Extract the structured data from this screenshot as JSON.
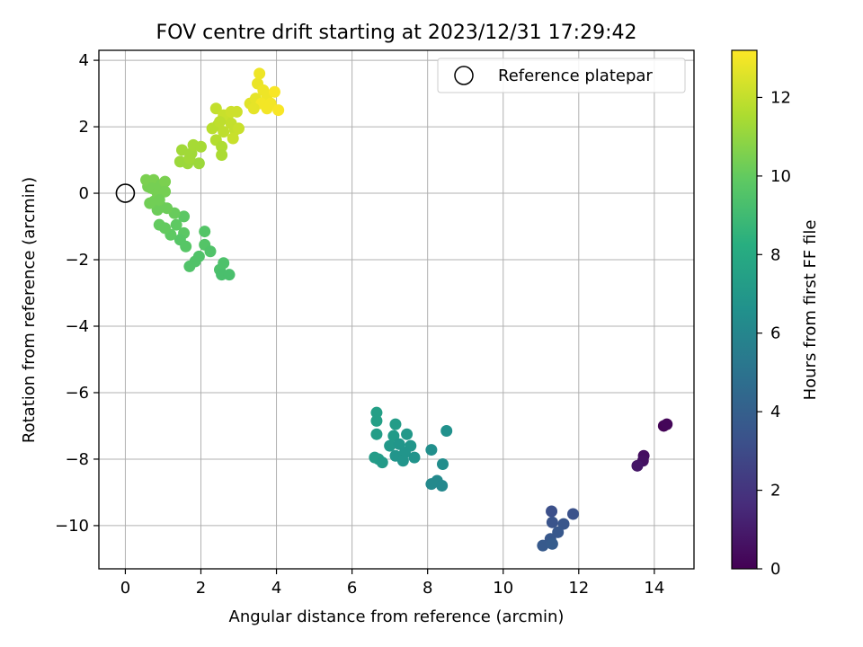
{
  "chart_data": {
    "type": "scatter",
    "title": "FOV centre drift starting at 2023/12/31 17:29:42",
    "xlabel": "Angular distance from reference (arcmin)",
    "ylabel": "Rotation from reference (arcmin)",
    "xlim": [
      -0.7,
      15.05
    ],
    "ylim": [
      -11.3,
      4.3
    ],
    "xticks": [
      0,
      2,
      4,
      6,
      8,
      10,
      12,
      14
    ],
    "yticks": [
      4,
      2,
      0,
      -2,
      -4,
      -6,
      -8,
      -10
    ],
    "grid": true,
    "legend": {
      "placement": "top-right",
      "entries": [
        "Reference platepar"
      ]
    },
    "reference": {
      "x": 0,
      "y": 0,
      "label": "Reference platepar",
      "marker": "open-circle"
    },
    "colorbar": {
      "label": "Hours from first FF file",
      "colormap": "viridis",
      "range": [
        0,
        13.2
      ],
      "ticks": [
        0,
        2,
        4,
        6,
        8,
        10,
        12
      ]
    },
    "points": [
      {
        "x": 14.25,
        "y": -7.0,
        "h": 0.1
      },
      {
        "x": 14.33,
        "y": -6.95,
        "h": 0.2
      },
      {
        "x": 13.72,
        "y": -7.9,
        "h": 0.5
      },
      {
        "x": 13.7,
        "y": -8.05,
        "h": 0.6
      },
      {
        "x": 13.55,
        "y": -8.2,
        "h": 0.8
      },
      {
        "x": 11.28,
        "y": -9.57,
        "h": 3.2
      },
      {
        "x": 11.85,
        "y": -9.65,
        "h": 3.3
      },
      {
        "x": 11.3,
        "y": -9.9,
        "h": 3.4
      },
      {
        "x": 11.6,
        "y": -9.95,
        "h": 3.5
      },
      {
        "x": 11.45,
        "y": -10.2,
        "h": 3.6
      },
      {
        "x": 11.25,
        "y": -10.4,
        "h": 3.6
      },
      {
        "x": 11.05,
        "y": -10.6,
        "h": 3.7
      },
      {
        "x": 11.3,
        "y": -10.55,
        "h": 3.8
      },
      {
        "x": 6.65,
        "y": -6.6,
        "h": 7.4
      },
      {
        "x": 6.65,
        "y": -6.85,
        "h": 7.4
      },
      {
        "x": 6.65,
        "y": -7.25,
        "h": 7.3
      },
      {
        "x": 7.15,
        "y": -6.95,
        "h": 7.2
      },
      {
        "x": 7.1,
        "y": -7.3,
        "h": 7.1
      },
      {
        "x": 7.45,
        "y": -7.25,
        "h": 7.0
      },
      {
        "x": 8.5,
        "y": -7.15,
        "h": 6.6
      },
      {
        "x": 7.0,
        "y": -7.6,
        "h": 7.0
      },
      {
        "x": 7.25,
        "y": -7.55,
        "h": 6.9
      },
      {
        "x": 7.55,
        "y": -7.6,
        "h": 6.9
      },
      {
        "x": 7.4,
        "y": -7.8,
        "h": 6.8
      },
      {
        "x": 7.15,
        "y": -7.9,
        "h": 6.8
      },
      {
        "x": 7.65,
        "y": -7.95,
        "h": 6.7
      },
      {
        "x": 7.35,
        "y": -8.05,
        "h": 6.8
      },
      {
        "x": 6.6,
        "y": -7.95,
        "h": 7.2
      },
      {
        "x": 6.7,
        "y": -8.0,
        "h": 7.2
      },
      {
        "x": 6.8,
        "y": -8.1,
        "h": 7.1
      },
      {
        "x": 8.1,
        "y": -7.72,
        "h": 6.5
      },
      {
        "x": 8.4,
        "y": -8.15,
        "h": 6.4
      },
      {
        "x": 8.1,
        "y": -8.75,
        "h": 6.2
      },
      {
        "x": 8.25,
        "y": -8.65,
        "h": 6.2
      },
      {
        "x": 8.38,
        "y": -8.8,
        "h": 6.1
      },
      {
        "x": 2.6,
        "y": -2.1,
        "h": 9.4
      },
      {
        "x": 2.5,
        "y": -2.3,
        "h": 9.4
      },
      {
        "x": 2.55,
        "y": -2.45,
        "h": 9.3
      },
      {
        "x": 2.75,
        "y": -2.45,
        "h": 9.3
      },
      {
        "x": 2.1,
        "y": -1.15,
        "h": 9.6
      },
      {
        "x": 2.1,
        "y": -1.55,
        "h": 9.6
      },
      {
        "x": 2.25,
        "y": -1.75,
        "h": 9.5
      },
      {
        "x": 1.95,
        "y": -1.9,
        "h": 9.5
      },
      {
        "x": 1.85,
        "y": -2.05,
        "h": 9.5
      },
      {
        "x": 1.7,
        "y": -2.2,
        "h": 9.5
      },
      {
        "x": 1.55,
        "y": -0.7,
        "h": 9.8
      },
      {
        "x": 1.35,
        "y": -0.95,
        "h": 9.9
      },
      {
        "x": 1.55,
        "y": -1.2,
        "h": 9.8
      },
      {
        "x": 1.45,
        "y": -1.4,
        "h": 9.7
      },
      {
        "x": 1.6,
        "y": -1.6,
        "h": 9.7
      },
      {
        "x": 1.2,
        "y": -1.25,
        "h": 9.9
      },
      {
        "x": 0.9,
        "y": -0.95,
        "h": 10.0
      },
      {
        "x": 1.05,
        "y": -1.05,
        "h": 10.0
      },
      {
        "x": 1.3,
        "y": -0.6,
        "h": 10.1
      },
      {
        "x": 1.1,
        "y": -0.45,
        "h": 10.2
      },
      {
        "x": 0.95,
        "y": -0.4,
        "h": 10.2
      },
      {
        "x": 0.75,
        "y": -0.25,
        "h": 10.3
      },
      {
        "x": 0.85,
        "y": -0.5,
        "h": 10.2
      },
      {
        "x": 0.65,
        "y": -0.3,
        "h": 10.3
      },
      {
        "x": 0.6,
        "y": 0.2,
        "h": 10.4
      },
      {
        "x": 0.55,
        "y": 0.4,
        "h": 10.5
      },
      {
        "x": 0.75,
        "y": 0.4,
        "h": 10.5
      },
      {
        "x": 0.7,
        "y": 0.15,
        "h": 10.4
      },
      {
        "x": 0.85,
        "y": 0.0,
        "h": 10.4
      },
      {
        "x": 0.95,
        "y": 0.25,
        "h": 10.4
      },
      {
        "x": 1.05,
        "y": 0.35,
        "h": 10.5
      },
      {
        "x": 1.05,
        "y": 0.05,
        "h": 10.4
      },
      {
        "x": 0.9,
        "y": -0.2,
        "h": 10.3
      },
      {
        "x": 1.45,
        "y": 0.95,
        "h": 11.2
      },
      {
        "x": 1.65,
        "y": 0.9,
        "h": 11.2
      },
      {
        "x": 1.5,
        "y": 1.3,
        "h": 11.3
      },
      {
        "x": 1.75,
        "y": 1.2,
        "h": 11.3
      },
      {
        "x": 1.8,
        "y": 1.45,
        "h": 11.4
      },
      {
        "x": 2.0,
        "y": 1.4,
        "h": 11.4
      },
      {
        "x": 1.95,
        "y": 0.9,
        "h": 11.2
      },
      {
        "x": 1.7,
        "y": 1.05,
        "h": 11.3
      },
      {
        "x": 2.3,
        "y": 1.95,
        "h": 11.8
      },
      {
        "x": 2.4,
        "y": 1.6,
        "h": 11.7
      },
      {
        "x": 2.55,
        "y": 1.4,
        "h": 11.6
      },
      {
        "x": 2.55,
        "y": 1.15,
        "h": 11.5
      },
      {
        "x": 2.45,
        "y": 2.05,
        "h": 11.8
      },
      {
        "x": 2.6,
        "y": 1.85,
        "h": 11.9
      },
      {
        "x": 2.7,
        "y": 2.25,
        "h": 12.0
      },
      {
        "x": 2.8,
        "y": 2.1,
        "h": 12.0
      },
      {
        "x": 2.9,
        "y": 1.9,
        "h": 12.0
      },
      {
        "x": 2.85,
        "y": 1.65,
        "h": 12.1
      },
      {
        "x": 3.0,
        "y": 1.95,
        "h": 12.1
      },
      {
        "x": 2.4,
        "y": 2.55,
        "h": 12.0
      },
      {
        "x": 2.6,
        "y": 2.35,
        "h": 12.1
      },
      {
        "x": 2.8,
        "y": 2.45,
        "h": 12.2
      },
      {
        "x": 2.95,
        "y": 2.45,
        "h": 12.2
      },
      {
        "x": 2.5,
        "y": 2.15,
        "h": 11.9
      },
      {
        "x": 3.3,
        "y": 2.7,
        "h": 12.6
      },
      {
        "x": 3.45,
        "y": 2.85,
        "h": 12.7
      },
      {
        "x": 3.5,
        "y": 3.3,
        "h": 12.8
      },
      {
        "x": 3.55,
        "y": 3.6,
        "h": 12.9
      },
      {
        "x": 3.65,
        "y": 3.1,
        "h": 12.9
      },
      {
        "x": 3.75,
        "y": 2.95,
        "h": 12.9
      },
      {
        "x": 3.6,
        "y": 2.7,
        "h": 13.0
      },
      {
        "x": 3.75,
        "y": 2.55,
        "h": 13.0
      },
      {
        "x": 3.85,
        "y": 2.7,
        "h": 13.0
      },
      {
        "x": 3.95,
        "y": 3.05,
        "h": 13.1
      },
      {
        "x": 4.05,
        "y": 2.5,
        "h": 13.1
      },
      {
        "x": 3.4,
        "y": 2.55,
        "h": 12.7
      }
    ]
  }
}
